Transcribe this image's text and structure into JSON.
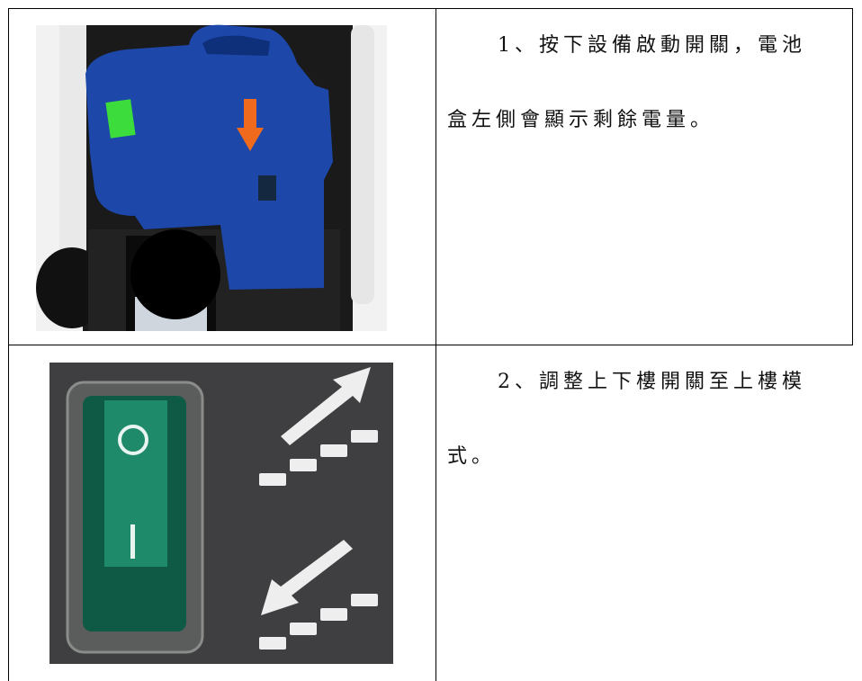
{
  "table": {
    "rows": [
      {
        "text_lines": [
          "1、按下設備啟動開關，電池",
          "盒左側會顯示剩餘電量。"
        ]
      },
      {
        "text_lines": [
          "2、調整上下樓開關至上樓模",
          "式。"
        ]
      }
    ]
  }
}
